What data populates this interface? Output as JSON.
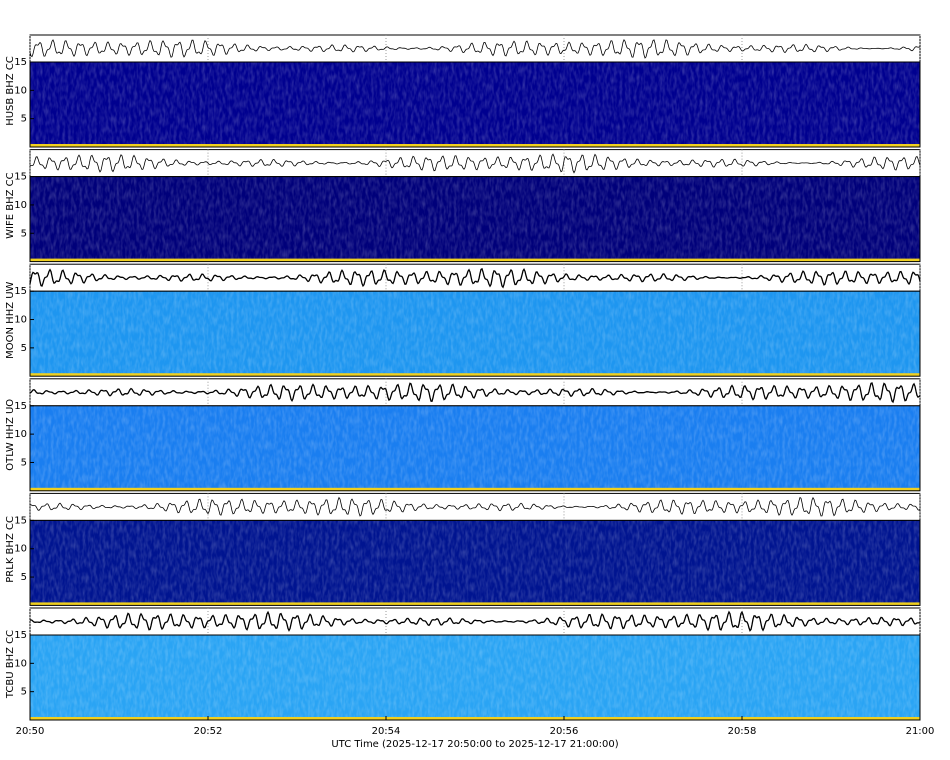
{
  "chart_data": [
    {
      "type": "spectrogram",
      "ylabel": "HUSB BHZ CC",
      "ylim": [
        0,
        15
      ],
      "yticks": [
        5,
        10,
        15
      ],
      "color": "#00008f"
    },
    {
      "type": "spectrogram",
      "ylabel": "WIFE BHZ CC",
      "ylim": [
        0,
        15
      ],
      "yticks": [
        5,
        10,
        15
      ],
      "color": "#00007a"
    },
    {
      "type": "spectrogram",
      "ylabel": "MOON HHZ UW",
      "ylim": [
        0,
        15
      ],
      "yticks": [
        5,
        10,
        15
      ],
      "color": "#1e96f0"
    },
    {
      "type": "spectrogram",
      "ylabel": "OTLW HHZ UO",
      "ylim": [
        0,
        15
      ],
      "yticks": [
        5,
        10,
        15
      ],
      "color": "#1a7ef0"
    },
    {
      "type": "spectrogram",
      "ylabel": "PRLK BHZ CC",
      "ylim": [
        0,
        15
      ],
      "yticks": [
        5,
        10,
        15
      ],
      "color": "#001490"
    },
    {
      "type": "spectrogram",
      "ylabel": "TCBU BHZ CC",
      "ylim": [
        0,
        15
      ],
      "yticks": [
        5,
        10,
        15
      ],
      "color": "#2aa4f4",
      "xlabel": "UTC Time (2025-12-17 20:50:00 to 2025-12-17 21:00:00)",
      "xlim": [
        0,
        10
      ],
      "xticks": [
        {
          "value": 0,
          "label": "20:50"
        },
        {
          "value": 2,
          "label": "20:52"
        },
        {
          "value": 4,
          "label": "20:54"
        },
        {
          "value": 6,
          "label": "20:56"
        },
        {
          "value": 8,
          "label": "20:58"
        },
        {
          "value": 10,
          "label": "21:00"
        }
      ]
    }
  ]
}
